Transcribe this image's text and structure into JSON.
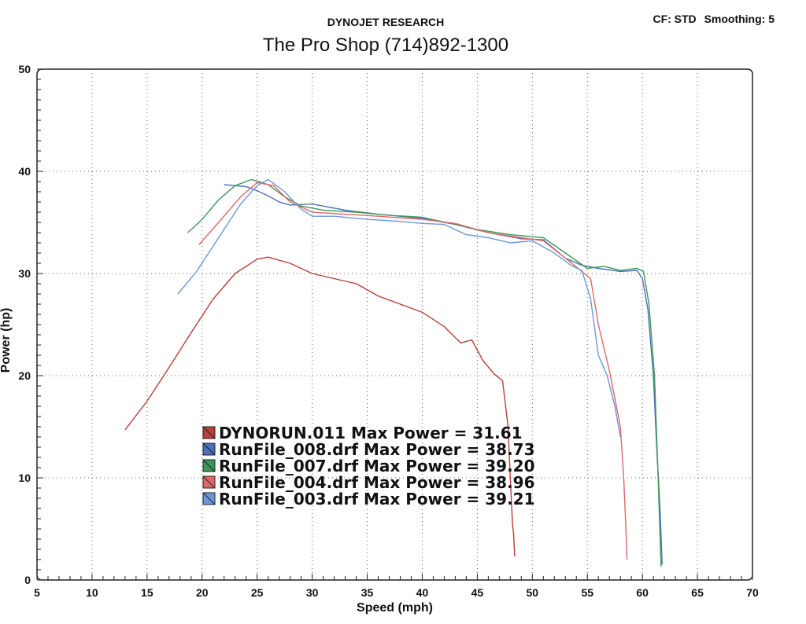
{
  "header": {
    "brand": "DYNOJET RESEARCH",
    "shop": "The Pro Shop (714)892-1300",
    "cf": "CF: STD",
    "smoothing": "Smoothing: 5"
  },
  "chart_data": {
    "type": "line",
    "xlabel": "Speed (mph)",
    "ylabel": "Power (hp)",
    "xlim": [
      5,
      70
    ],
    "ylim": [
      0,
      50
    ],
    "x_ticks": [
      5,
      10,
      15,
      20,
      25,
      30,
      35,
      40,
      45,
      50,
      55,
      60,
      65,
      70
    ],
    "y_ticks": [
      0,
      10,
      20,
      30,
      40,
      50
    ],
    "grid": true,
    "legend_position": "center-left",
    "series": [
      {
        "name": "DYNORUN.011",
        "label": "DYNORUN.011 Max Power = 31.61",
        "max_power": 31.61,
        "color": "#b8403a",
        "x": [
          13,
          15,
          17,
          19,
          21,
          23,
          25,
          26,
          28,
          30,
          32,
          34,
          36,
          38,
          40,
          42,
          43.5,
          44.5,
          45.5,
          46.5,
          47.3,
          47.8,
          48.0,
          48.2,
          48.3,
          48.4
        ],
        "y": [
          14.7,
          17.5,
          20.8,
          24.2,
          27.5,
          30.0,
          31.4,
          31.6,
          31.0,
          30.0,
          29.5,
          29.0,
          27.8,
          27.0,
          26.2,
          24.8,
          23.2,
          23.5,
          21.5,
          20.2,
          19.5,
          15.0,
          10.0,
          5.5,
          4.5,
          2.3
        ]
      },
      {
        "name": "RunFile_008.drf",
        "label": "RunFile_008.drf Max Power = 38.73",
        "max_power": 38.73,
        "color": "#4a6fb8",
        "x": [
          22,
          24,
          25,
          26,
          27,
          28,
          30,
          33,
          36,
          40,
          43,
          46,
          49,
          51,
          53,
          54.5,
          56,
          58,
          59.5,
          60,
          60.5,
          61,
          61.3,
          61.6,
          61.8
        ],
        "y": [
          38.7,
          38.5,
          38.1,
          37.6,
          37.0,
          36.7,
          36.8,
          36.2,
          35.8,
          35.4,
          34.8,
          34.0,
          33.4,
          33.3,
          31.5,
          30.8,
          30.5,
          30.2,
          30.3,
          29.5,
          26.5,
          20.0,
          13.0,
          7.0,
          1.5
        ]
      },
      {
        "name": "RunFile_007.drf",
        "label": "RunFile_007.drf Max Power = 39.20",
        "max_power": 39.2,
        "color": "#3a9a58",
        "x": [
          18.7,
          20,
          21.5,
          23,
          24.5,
          26,
          27.5,
          29,
          31,
          34,
          37,
          40,
          43,
          45,
          48,
          51,
          53,
          55,
          56.5,
          58,
          59.5,
          60.1,
          60.6,
          61.1,
          61.4,
          61.7
        ],
        "y": [
          34.0,
          35.3,
          37.2,
          38.6,
          39.2,
          38.7,
          37.5,
          36.6,
          36.2,
          36.0,
          35.7,
          35.5,
          34.8,
          34.3,
          33.8,
          33.5,
          32.0,
          30.5,
          30.7,
          30.3,
          30.5,
          30.2,
          27.0,
          20.0,
          11.0,
          1.3
        ]
      },
      {
        "name": "RunFile_004.drf",
        "label": "RunFile_004.drf Max Power = 38.96",
        "max_power": 38.96,
        "color": "#e06868",
        "x": [
          19.7,
          21.5,
          23.5,
          25,
          26.5,
          28,
          30,
          33,
          36,
          40,
          43,
          46,
          49,
          51,
          53,
          54.5,
          55.3,
          56,
          57,
          58,
          58.3,
          58.5,
          58.6
        ],
        "y": [
          32.8,
          35.0,
          37.5,
          38.9,
          38.6,
          37.0,
          36.0,
          35.8,
          35.6,
          35.3,
          34.9,
          34.0,
          33.5,
          33.2,
          31.5,
          30.2,
          29.5,
          25.0,
          20.5,
          15.0,
          10.0,
          5.0,
          2.0
        ]
      },
      {
        "name": "RunFile_003.drf",
        "label": "RunFile_003.drf Max Power = 39.21",
        "max_power": 39.21,
        "color": "#6a98d8",
        "x": [
          17.8,
          19.5,
          21.5,
          23.5,
          25,
          26,
          27.5,
          29,
          30,
          32,
          35,
          38,
          40,
          42,
          44,
          46,
          48,
          50,
          52,
          53.5,
          54.5,
          55.3,
          56,
          56.8,
          57.5,
          58
        ],
        "y": [
          28.0,
          30.2,
          33.5,
          36.8,
          38.6,
          39.2,
          38.0,
          36.3,
          35.6,
          35.6,
          35.3,
          35.1,
          34.9,
          34.8,
          33.8,
          33.5,
          33.0,
          33.2,
          32.0,
          30.8,
          30.3,
          27.5,
          22.0,
          20.0,
          17.0,
          14.0
        ]
      }
    ]
  }
}
